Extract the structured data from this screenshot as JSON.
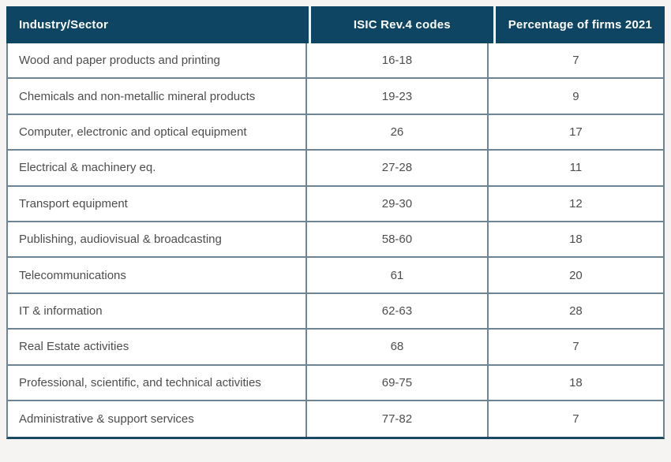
{
  "table": {
    "columns": [
      {
        "label": "Industry/Sector"
      },
      {
        "label": "ISIC Rev.4 codes"
      },
      {
        "label": "Percentage of firms 2021"
      }
    ],
    "rows": [
      {
        "sector": "Wood and paper products and printing",
        "codes": "16-18",
        "pct": "7"
      },
      {
        "sector": "Chemicals and non-metallic mineral products",
        "codes": "19-23",
        "pct": "9"
      },
      {
        "sector": "Computer, electronic and optical equipment",
        "codes": "26",
        "pct": "17"
      },
      {
        "sector": "Electrical & machinery eq.",
        "codes": "27-28",
        "pct": "11"
      },
      {
        "sector": "Transport equipment",
        "codes": "29-30",
        "pct": "12"
      },
      {
        "sector": "Publishing, audiovisual & broadcasting",
        "codes": "58-60",
        "pct": "18"
      },
      {
        "sector": "Telecommunications",
        "codes": "61",
        "pct": "20"
      },
      {
        "sector": "IT & information",
        "codes": "62-63",
        "pct": "28"
      },
      {
        "sector": "Real Estate activities",
        "codes": "68",
        "pct": "7"
      },
      {
        "sector": "Professional, scientific, and technical activities",
        "codes": "69-75",
        "pct": "18"
      },
      {
        "sector": "Administrative & support services",
        "codes": "77-82",
        "pct": "7"
      }
    ]
  },
  "colors": {
    "header_bg": "#0d4563",
    "header_text": "#ffffff",
    "border": "#6d8494",
    "bottom_border": "#1d4a63",
    "body_text": "#4d4d4d",
    "row_bg": "#ffffff",
    "page_bg": "#f5f4f2"
  },
  "chart_data": {
    "type": "table",
    "title": "",
    "columns": [
      "Industry/Sector",
      "ISIC Rev.4 codes",
      "Percentage of firms 2021"
    ],
    "rows": [
      [
        "Wood and paper products and printing",
        "16-18",
        7
      ],
      [
        "Chemicals and non-metallic mineral products",
        "19-23",
        9
      ],
      [
        "Computer, electronic and optical equipment",
        "26",
        17
      ],
      [
        "Electrical & machinery eq.",
        "27-28",
        11
      ],
      [
        "Transport equipment",
        "29-30",
        12
      ],
      [
        "Publishing, audiovisual & broadcasting",
        "58-60",
        18
      ],
      [
        "Telecommunications",
        "61",
        20
      ],
      [
        "IT & information",
        "62-63",
        28
      ],
      [
        "Real Estate activities",
        "68",
        7
      ],
      [
        "Professional, scientific, and technical activities",
        "69-75",
        18
      ],
      [
        "Administrative & support services",
        "77-82",
        7
      ]
    ]
  }
}
